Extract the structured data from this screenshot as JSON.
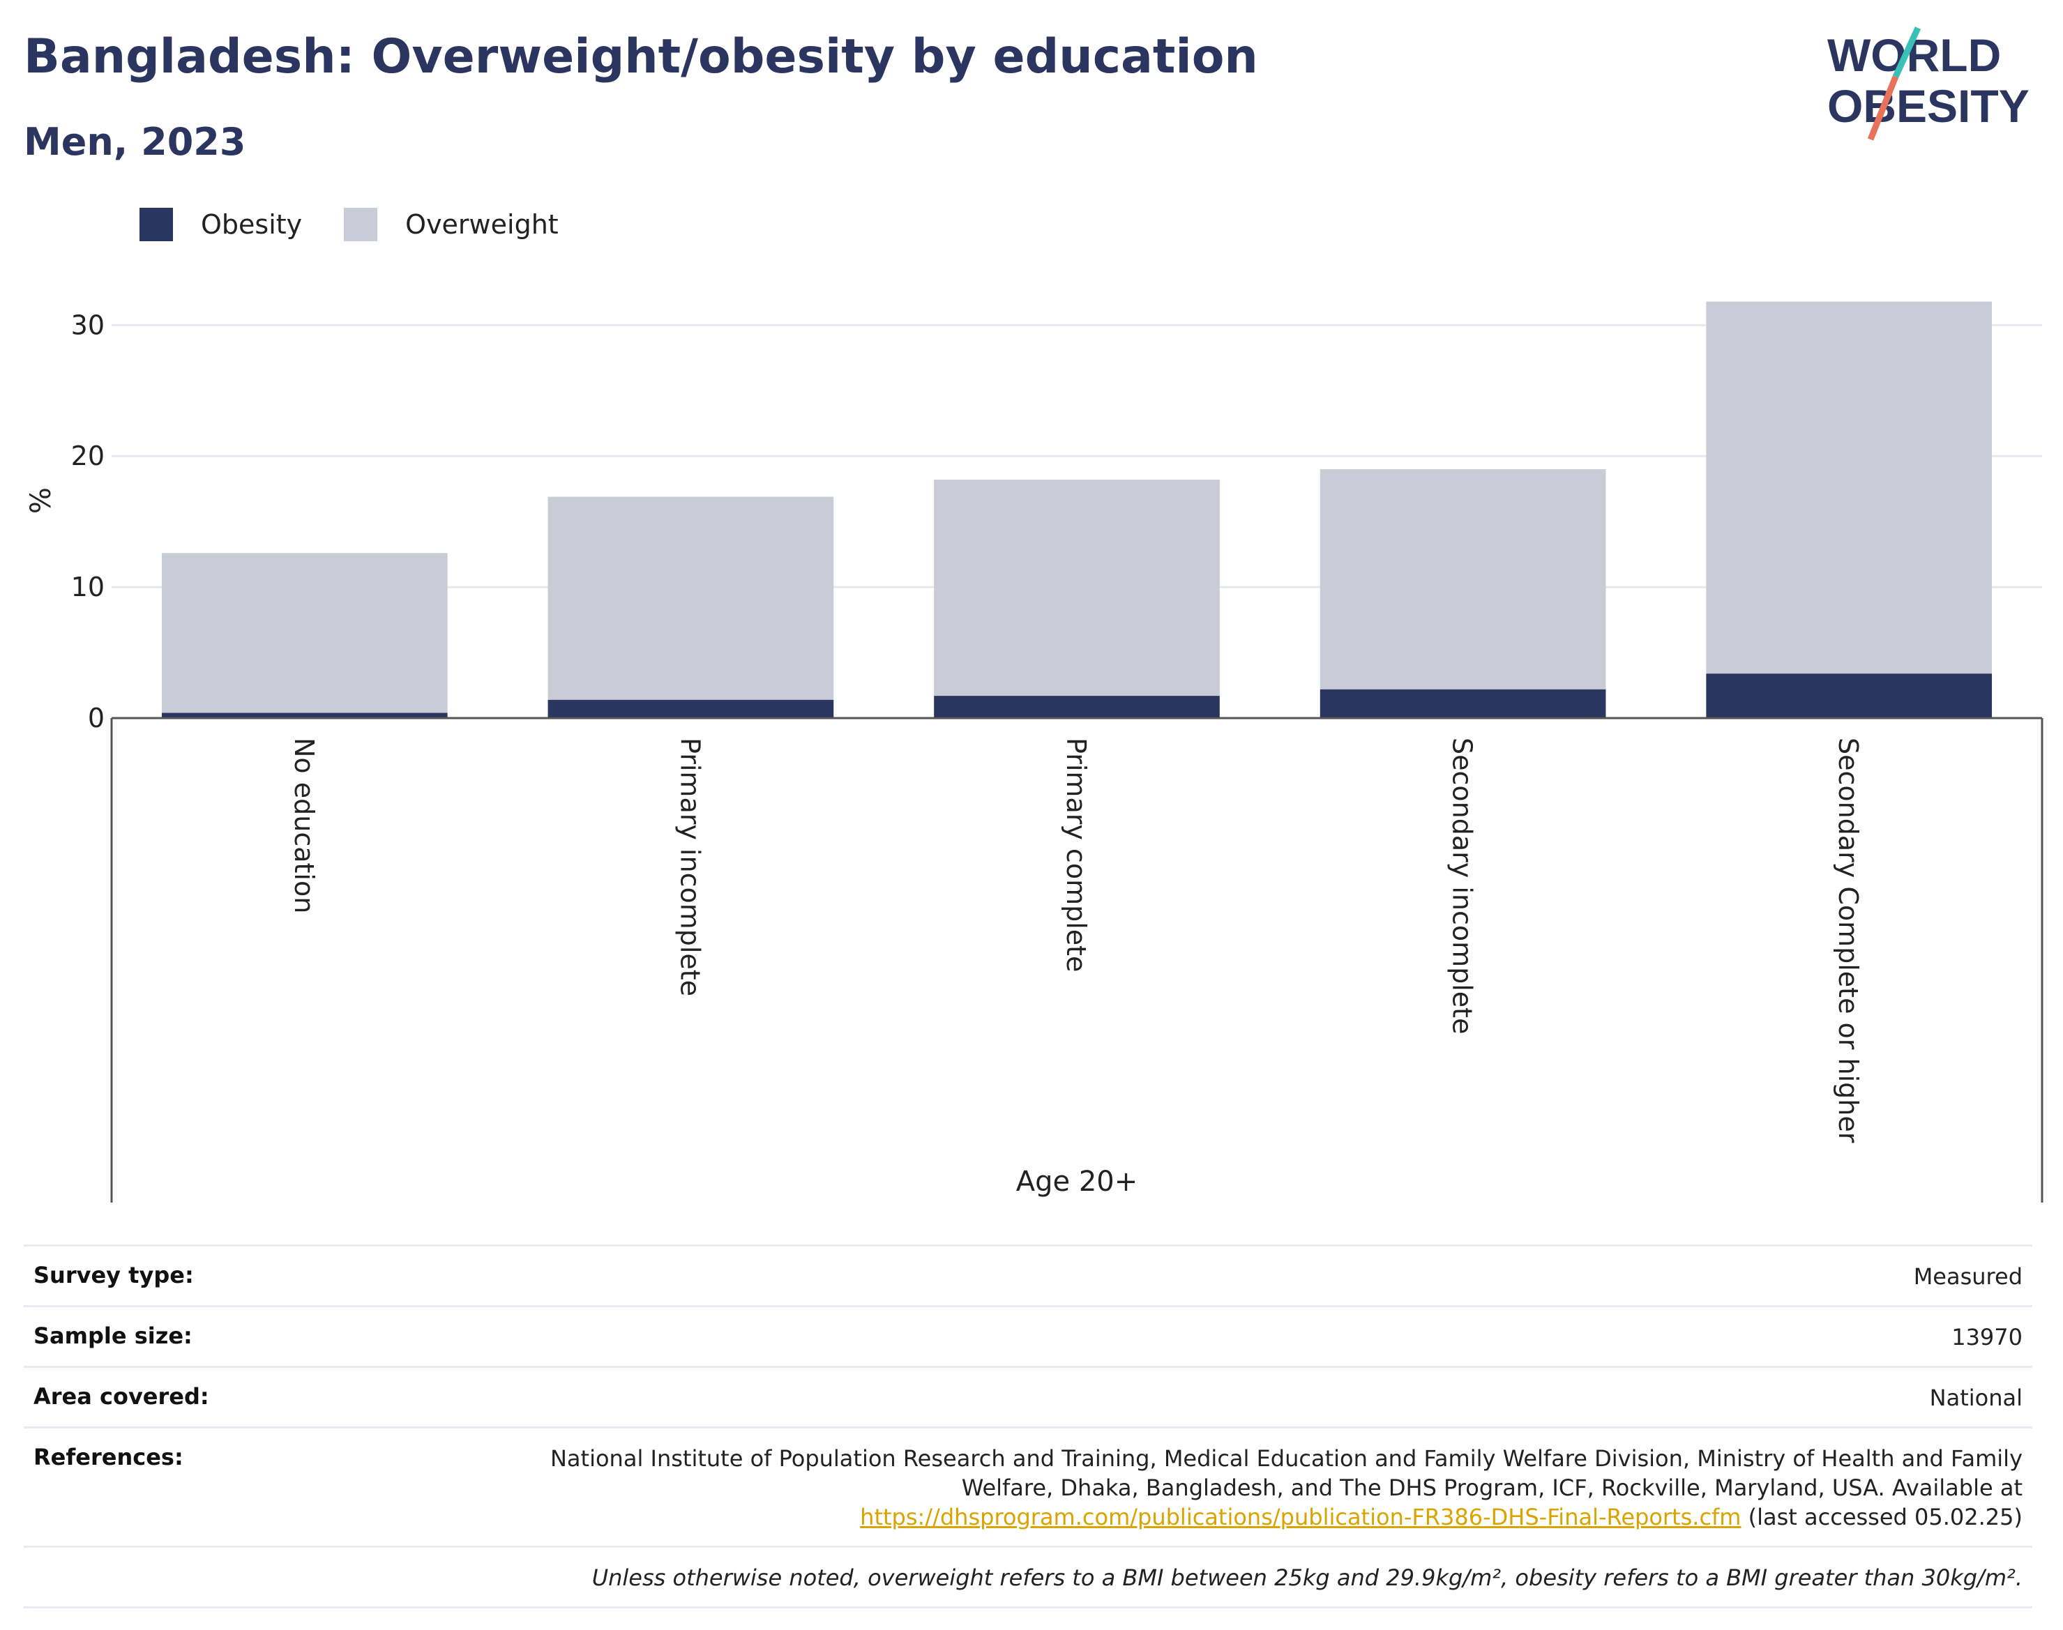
{
  "header": {
    "title": "Bangladesh: Overweight/obesity by education",
    "subtitle": "Men, 2023"
  },
  "logo": {
    "line1": "WORLD",
    "line2": "OBESITY",
    "colors": {
      "text": "#2b3660",
      "slash_top": "#3bbfb9",
      "slash_bottom": "#e8735a"
    }
  },
  "colors": {
    "obesity": "#2b3660",
    "overweight": "#c9cbd6",
    "gridline": "#e6e8ee",
    "axis": "#555555"
  },
  "chart_data": {
    "type": "bar",
    "stacked": true,
    "categories": [
      "No education",
      "Primary incomplete",
      "Primary complete",
      "Secondary incomplete",
      "Secondary Complete or higher"
    ],
    "series": [
      {
        "name": "Obesity",
        "values": [
          0.4,
          1.4,
          1.7,
          2.2,
          3.4
        ]
      },
      {
        "name": "Overweight",
        "values": [
          12.2,
          15.5,
          16.5,
          16.8,
          28.4
        ]
      }
    ],
    "ylabel": "%",
    "xlabel": "Age 20+",
    "ylim": [
      0,
      33
    ],
    "yticks": [
      0,
      10,
      20,
      30
    ],
    "grid": true,
    "legend_position": "top-left"
  },
  "meta": {
    "rows": [
      {
        "label": "Survey type:",
        "value": "Measured"
      },
      {
        "label": "Sample size:",
        "value": "13970"
      },
      {
        "label": "Area covered:",
        "value": "National"
      }
    ],
    "references": {
      "label": "References:",
      "text": "National Institute of Population Research and Training, Medical Education and Family Welfare Division, Ministry of Health and Family Welfare, Dhaka, Bangladesh, and The DHS Program, ICF, Rockville, Maryland, USA. Available at",
      "link": "https://dhsprogram.com/publications/publication-FR386-DHS-Final-Reports.cfm",
      "suffix": "(last accessed 05.02.25)"
    },
    "note": "Unless otherwise noted, overweight refers to a BMI between 25kg and 29.9kg/m², obesity refers to a BMI greater than 30kg/m²."
  }
}
